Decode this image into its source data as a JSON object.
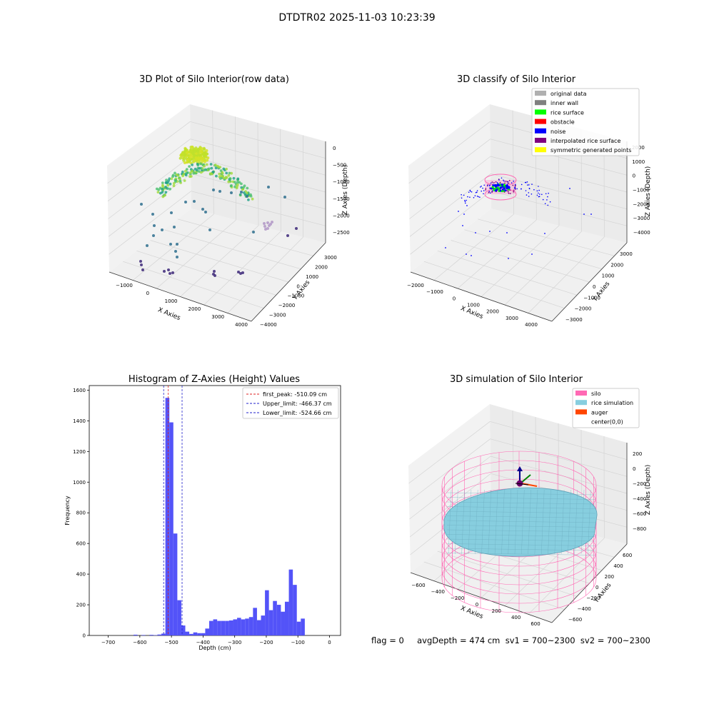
{
  "suptitle": "DTDTR02 2025-11-03 10:23:39",
  "footer": "flag = 0     avgDepth = 474 cm  sv1 = 700~2300  sv2 = 700~2300",
  "colors": {
    "hist_bar": "#5050f8",
    "first_peak": "#dd2222",
    "limit": "#2222cc",
    "silo": "#ff69b4",
    "rice": "#87cedf",
    "auger": "#ff4500"
  },
  "chart_data": [
    {
      "type": "scatter",
      "panel": "top-left",
      "title": "3D Plot of Silo Interior(row data)",
      "xlabel": "X Axies",
      "ylabel": "Y Axies",
      "zlabel": "Z Axies (Depth)",
      "x_ticks": [
        "−1000",
        "0",
        "1000",
        "2000",
        "3000",
        "4000"
      ],
      "y_ticks": [
        "−4000",
        "−3000",
        "−2000",
        "−1000",
        "0",
        "1000",
        "2000",
        "3000"
      ],
      "z_ticks": [
        "0",
        "−500",
        "−1000",
        "−1500",
        "−2000",
        "−2500"
      ],
      "colormap": "viridis"
    },
    {
      "type": "scatter",
      "panel": "top-right",
      "title": "3D classify of Silo Interior",
      "xlabel": "X Axies",
      "ylabel": "Y Axies",
      "zlabel": "Z Axies (Depth)",
      "x_ticks": [
        "−2000",
        "−1000",
        "0",
        "1000",
        "2000",
        "3000",
        "4000"
      ],
      "y_ticks": [
        "−3000",
        "−2000",
        "−1000",
        "0",
        "1000",
        "2000",
        "3000"
      ],
      "z_ticks": [
        "2000",
        "1000",
        "0",
        "−1000",
        "−2000",
        "−3000",
        "−4000"
      ],
      "legend": [
        {
          "label": "original data",
          "color": "#b0b0b0"
        },
        {
          "label": "inner wall",
          "color": "#808080"
        },
        {
          "label": "rice surface",
          "color": "#00ff00"
        },
        {
          "label": "obstacle",
          "color": "#ff0000"
        },
        {
          "label": "noise",
          "color": "#0000ff"
        },
        {
          "label": "interpolated rice surface",
          "color": "#800080"
        },
        {
          "label": "symmetric generated points",
          "color": "#ffff00"
        }
      ]
    },
    {
      "type": "bar",
      "panel": "bottom-left",
      "title": "Histogram of Z-Axies (Height) Values",
      "xlabel": "Depth (cm)",
      "ylabel": "Frequency",
      "xlim": [
        -760,
        35
      ],
      "ylim": [
        0,
        1630
      ],
      "x_ticks": [
        -700,
        -600,
        -500,
        -400,
        -300,
        -200,
        -100,
        0
      ],
      "y_ticks": [
        0,
        200,
        400,
        600,
        800,
        1000,
        1200,
        1400,
        1600
      ],
      "bin_width": 12.6,
      "bin_starts": [
        -620,
        -607.4,
        -594.8,
        -582.2,
        -569.6,
        -557,
        -544.4,
        -531.8,
        -519.2,
        -506.6,
        -494,
        -481.4,
        -468.8,
        -456.2,
        -443.6,
        -431,
        -418.4,
        -405.8,
        -393.2,
        -380.6,
        -368,
        -355.4,
        -342.8,
        -330.2,
        -317.6,
        -305,
        -292.4,
        -279.8,
        -267.2,
        -254.6,
        -242,
        -229.4,
        -216.8,
        -204.2,
        -191.6,
        -179,
        -166.4,
        -153.8,
        -141.2,
        -128.6,
        -116,
        -103.4,
        -90.8,
        -78.2,
        -65.6,
        -53,
        -40.4,
        -27.8,
        -15.2,
        -2.6
      ],
      "values": [
        5,
        0,
        3,
        0,
        4,
        2,
        6,
        12,
        1550,
        1390,
        665,
        230,
        65,
        25,
        10,
        20,
        15,
        15,
        45,
        95,
        105,
        95,
        95,
        95,
        98,
        105,
        115,
        105,
        110,
        120,
        180,
        100,
        130,
        295,
        165,
        225,
        200,
        155,
        220,
        430,
        330,
        90,
        110,
        0,
        0,
        0,
        0,
        0,
        0,
        0
      ],
      "vlines": [
        {
          "label": "first_peak: -510.09 cm",
          "x": -510.09,
          "color": "#dd2222"
        },
        {
          "label": "Upper_limit: -466.37 cm",
          "x": -466.37,
          "color": "#2222cc"
        },
        {
          "label": "Lower_limit: -524.66 cm",
          "x": -524.66,
          "color": "#2222cc"
        }
      ],
      "legend_position": "upper right"
    },
    {
      "type": "surface",
      "panel": "bottom-right",
      "title": "3D simulation of Silo Interior",
      "xlabel": "X Axies",
      "ylabel": "Y Axies",
      "zlabel": "Z Axies (Depth)",
      "x_ticks": [
        "−600",
        "−400",
        "−200",
        "0",
        "200",
        "400",
        "600"
      ],
      "y_ticks": [
        "−600",
        "−400",
        "−200",
        "0",
        "200",
        "400",
        "600"
      ],
      "z_ticks": [
        "200",
        "0",
        "−200",
        "−400",
        "−600",
        "−800"
      ],
      "legend": [
        {
          "label": "silo",
          "color": "#ff69b4"
        },
        {
          "label": "rice simulation",
          "color": "#87cedf"
        },
        {
          "label": "auger",
          "color": "#ff4500"
        },
        {
          "label": "center(0,0)",
          "color": ""
        }
      ]
    }
  ]
}
